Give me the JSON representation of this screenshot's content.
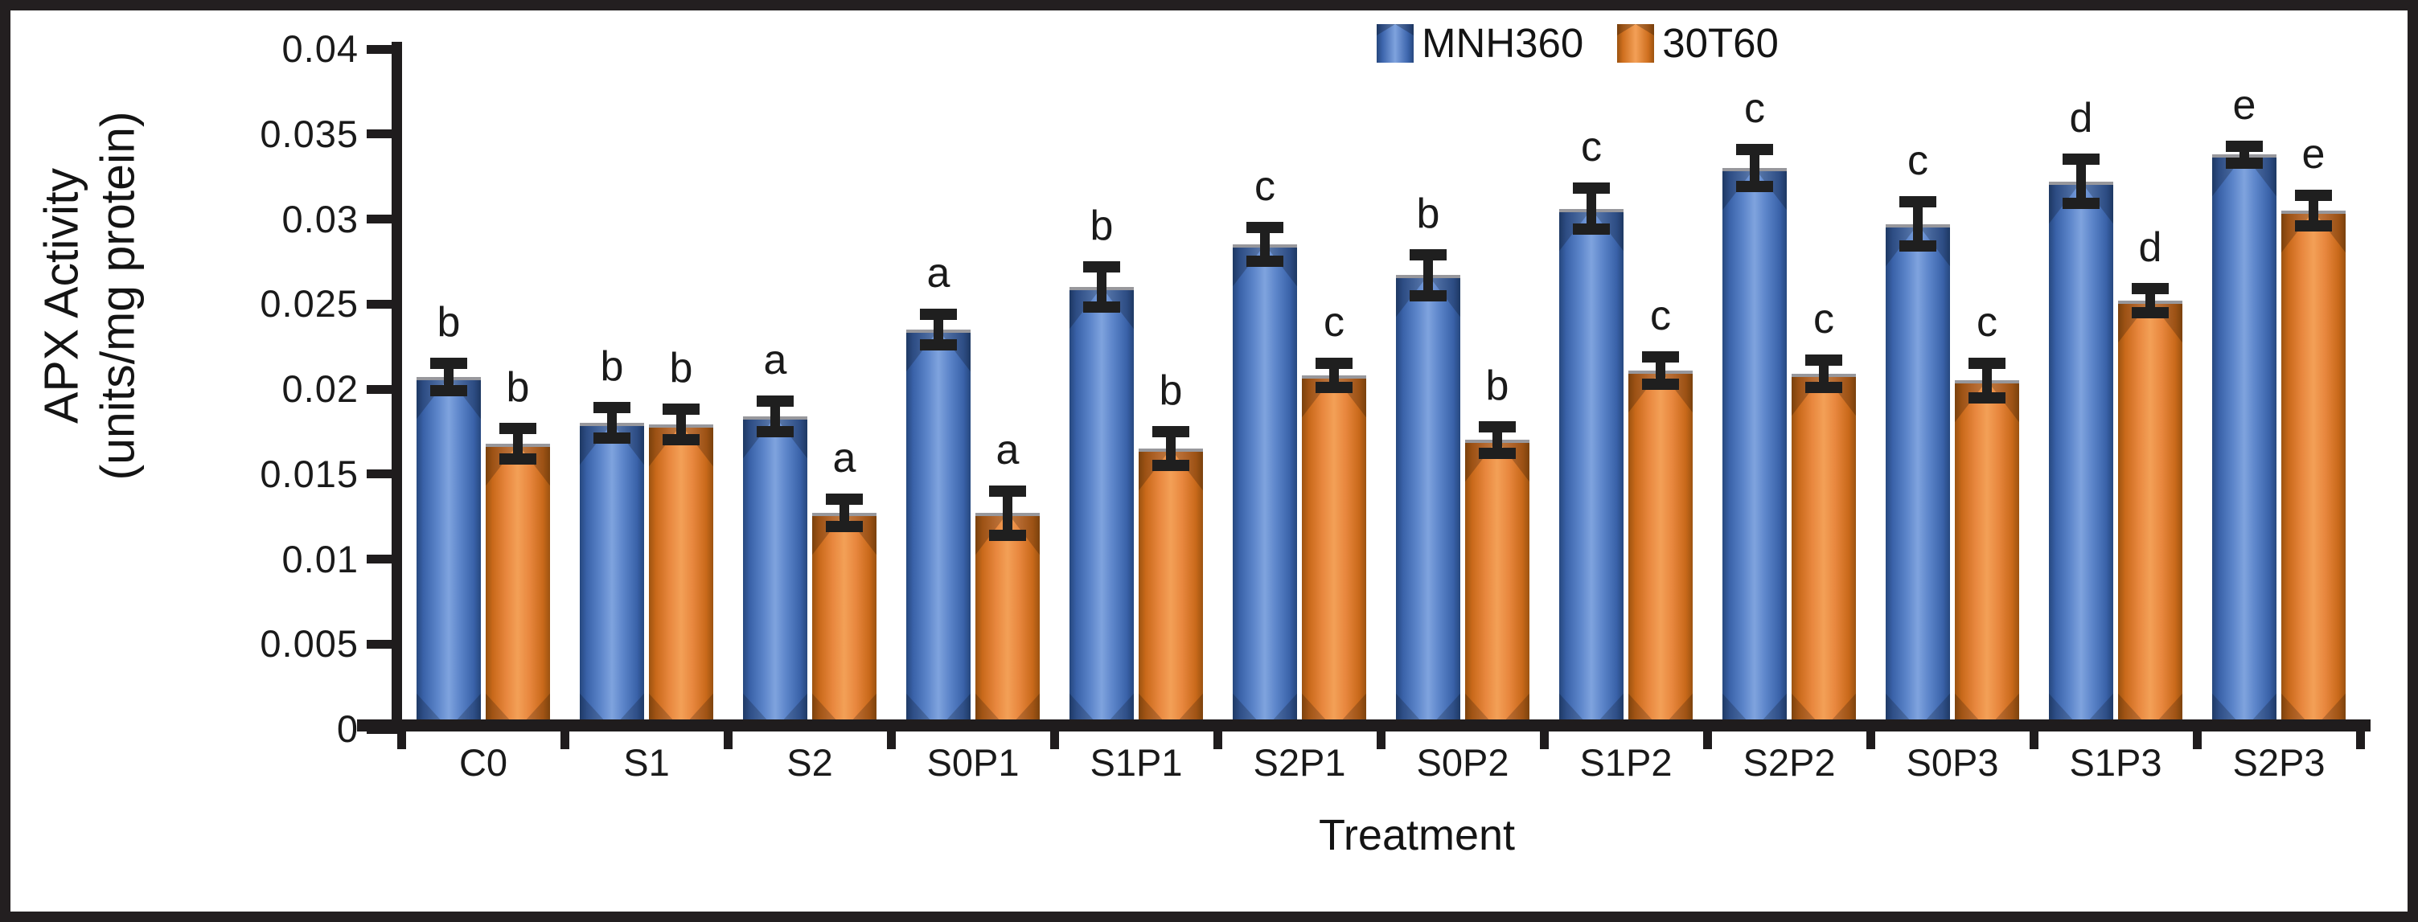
{
  "chart_data": {
    "type": "bar",
    "title": "",
    "xlabel": "Treatment",
    "ylabel": "APX Activity (units/mg protein)",
    "ylabel_lines": [
      "APX Activity",
      "(units/mg protein)"
    ],
    "ylim": [
      0,
      0.04
    ],
    "y_tick_step": 0.005,
    "y_tick_labels": [
      "0.04",
      "0.035",
      "0.03",
      "0.025",
      "0.02",
      "0.015",
      "0.01",
      "0.005",
      "0"
    ],
    "grid": false,
    "legend_position": "top-center",
    "categories": [
      "C0",
      "S1",
      "S2",
      "S0P1",
      "S1P1",
      "S2P1",
      "S0P2",
      "S1P2",
      "S2P2",
      "S0P3",
      "S1P3",
      "S2P3"
    ],
    "series": [
      {
        "name": "MNH360",
        "color": "#4472c4",
        "values": [
          0.0207,
          0.018,
          0.0184,
          0.0235,
          0.026,
          0.0285,
          0.0267,
          0.0306,
          0.033,
          0.0297,
          0.0322,
          0.0338
        ],
        "errors": [
          0.0008,
          0.0009,
          0.0009,
          0.0009,
          0.0012,
          0.001,
          0.0012,
          0.0012,
          0.0011,
          0.0013,
          0.0013,
          0.0005
        ],
        "sig_letters": [
          "b",
          "b",
          "a",
          "a",
          "b",
          "c",
          "b",
          "c",
          "c",
          "c",
          "d",
          "e"
        ]
      },
      {
        "name": "30T60",
        "color": "#ed7d31",
        "values": [
          0.0168,
          0.0179,
          0.0127,
          0.0127,
          0.0165,
          0.0208,
          0.017,
          0.0211,
          0.0209,
          0.0205,
          0.0252,
          0.0305
        ],
        "errors": [
          0.0009,
          0.0009,
          0.0008,
          0.0013,
          0.001,
          0.0007,
          0.0008,
          0.0008,
          0.0008,
          0.001,
          0.0007,
          0.0009
        ],
        "sig_letters": [
          "b",
          "b",
          "a",
          "a",
          "b",
          "c",
          "b",
          "c",
          "c",
          "c",
          "d",
          "e"
        ]
      }
    ]
  }
}
